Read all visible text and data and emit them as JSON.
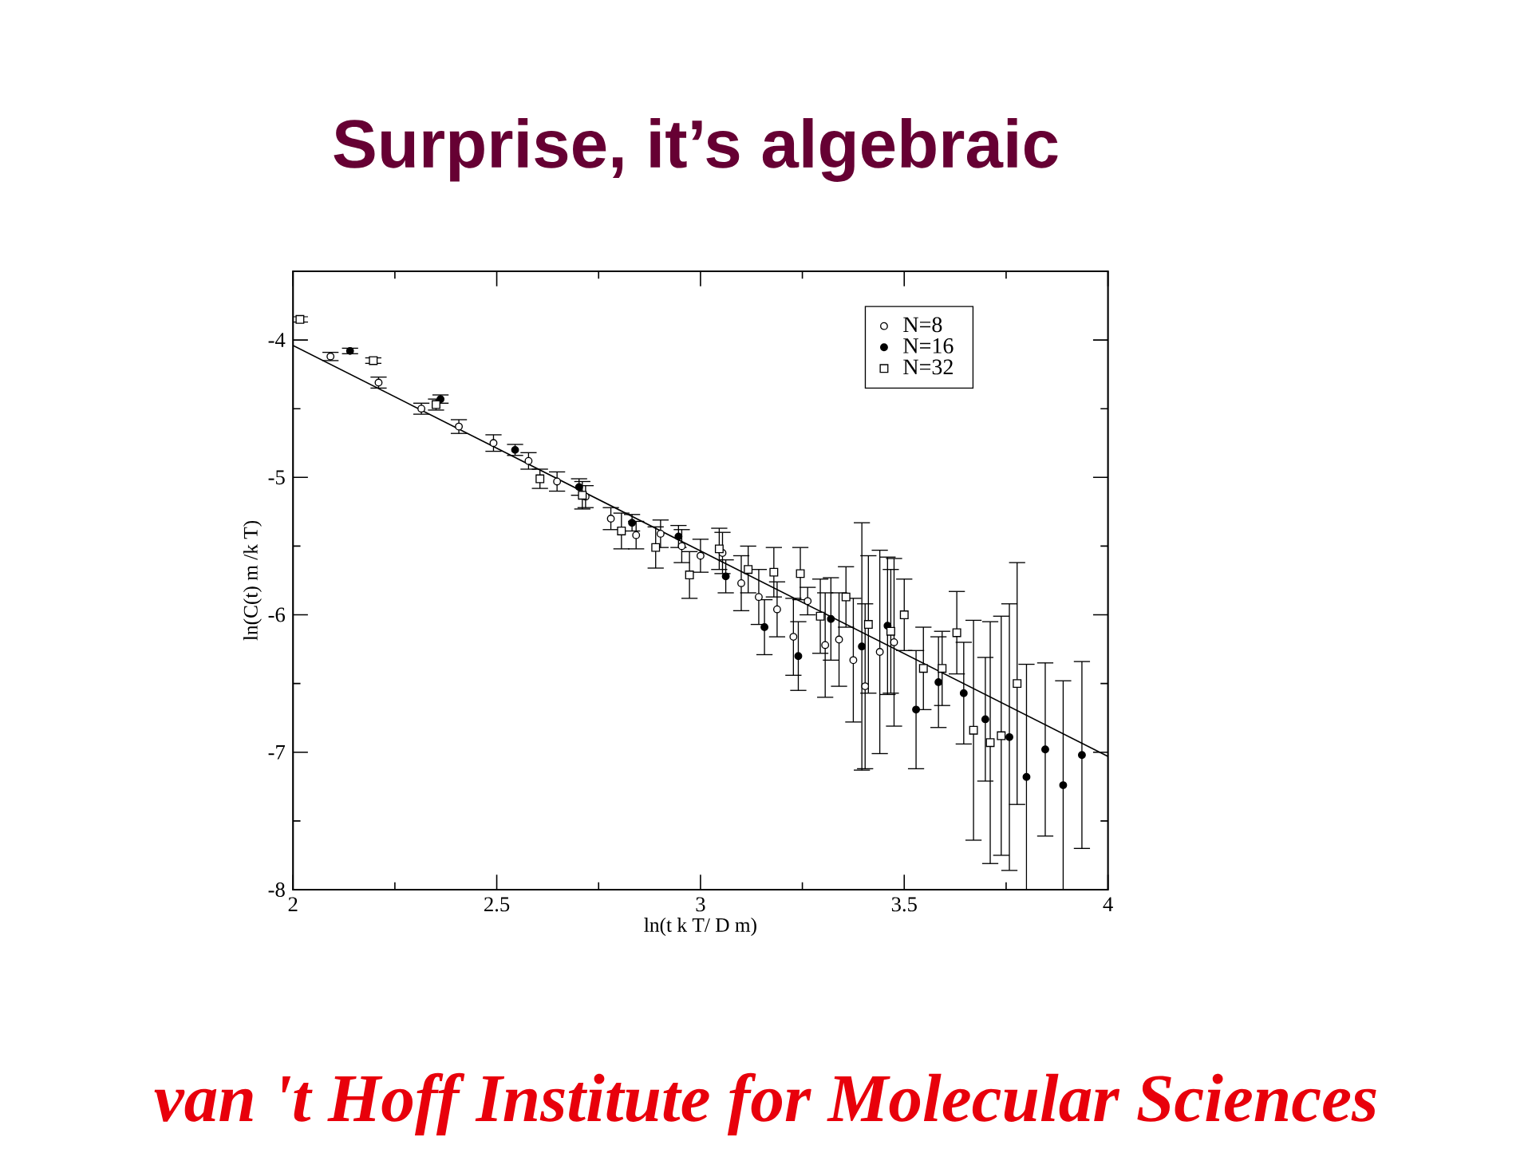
{
  "chart_data": {
    "type": "scatter",
    "title": "Surprise, it’s algebraic",
    "xlabel": "ln(t k T/ D m)",
    "ylabel": "ln(C(t) m /k T)",
    "xlim": [
      2,
      4
    ],
    "ylim": [
      -8,
      -3.5
    ],
    "xticks": [
      2,
      {
        "value": 2.25,
        "label": null
      },
      2.5,
      {
        "value": 2.75,
        "label": null
      },
      3,
      {
        "value": 3.25,
        "label": null
      },
      3.5,
      {
        "value": 3.75,
        "label": null
      },
      4
    ],
    "yticks": [
      -8,
      {
        "value": -7.5,
        "label": null
      },
      -7,
      {
        "value": -6.5,
        "label": null
      },
      -6,
      {
        "value": -5.5,
        "label": null
      },
      -5,
      {
        "value": -4.5,
        "label": null
      },
      -4
    ],
    "legend": "top right",
    "series": [
      {
        "name": "N=8",
        "color": "#ffffff",
        "marker": "circle",
        "x": [
          2.092,
          2.21,
          2.315,
          2.407,
          2.492,
          2.578,
          2.648,
          2.718,
          2.78,
          2.842,
          2.902,
          2.954,
          3.0,
          3.054,
          3.1,
          3.143,
          3.188,
          3.228,
          3.263,
          3.306,
          3.34,
          3.375,
          3.404,
          3.44,
          3.475
        ],
        "values": [
          -4.12,
          -4.31,
          -4.5,
          -4.63,
          -4.75,
          -4.88,
          -5.03,
          -5.14,
          -5.3,
          -5.42,
          -5.41,
          -5.5,
          -5.57,
          -5.55,
          -5.77,
          -5.87,
          -5.96,
          -6.16,
          -5.9,
          -6.22,
          -6.18,
          -6.33,
          -6.52,
          -6.27,
          -6.2
        ],
        "errors": [
          0.03,
          0.04,
          0.04,
          0.05,
          0.06,
          0.06,
          0.07,
          0.08,
          0.08,
          0.1,
          0.1,
          0.12,
          0.12,
          0.15,
          0.2,
          0.2,
          0.2,
          0.28,
          0.1,
          0.38,
          0.34,
          0.45,
          0.6,
          0.74,
          0.61
        ]
      },
      {
        "name": "N=16",
        "color": "#000000",
        "marker": "circle",
        "x": [
          2.14,
          2.362,
          2.545,
          2.702,
          2.832,
          2.946,
          3.062,
          3.157,
          3.24,
          3.32,
          3.396,
          3.459,
          3.529,
          3.584,
          3.646,
          3.699,
          3.758,
          3.8,
          3.846,
          3.89,
          3.936
        ],
        "values": [
          -4.08,
          -4.43,
          -4.8,
          -5.07,
          -5.33,
          -5.43,
          -5.72,
          -6.09,
          -6.3,
          -6.03,
          -6.23,
          -6.08,
          -6.69,
          -6.49,
          -6.57,
          -6.76,
          -6.89,
          -7.18,
          -6.98,
          -7.24,
          -7.02
        ],
        "errors": [
          0.02,
          0.03,
          0.04,
          0.06,
          0.06,
          0.08,
          0.12,
          0.2,
          0.25,
          0.3,
          0.9,
          0.5,
          0.43,
          0.33,
          0.37,
          0.45,
          0.97,
          0.82,
          0.63,
          0.76,
          0.68
        ]
      },
      {
        "name": "N=32",
        "color": "#ffffff",
        "marker": "square",
        "x": [
          2.017,
          2.197,
          2.351,
          2.606,
          2.71,
          2.806,
          2.89,
          2.973,
          3.046,
          3.117,
          3.18,
          3.245,
          3.294,
          3.357,
          3.412,
          3.467,
          3.5,
          3.547,
          3.593,
          3.629,
          3.67,
          3.711,
          3.738,
          3.777
        ],
        "values": [
          -3.85,
          -4.15,
          -4.47,
          -5.01,
          -5.13,
          -5.39,
          -5.51,
          -5.71,
          -5.52,
          -5.67,
          -5.69,
          -5.7,
          -6.01,
          -5.87,
          -6.07,
          -6.12,
          -6.0,
          -6.39,
          -6.39,
          -6.13,
          -6.84,
          -6.93,
          -6.88,
          -6.5
        ],
        "errors": [
          0.02,
          0.02,
          0.04,
          0.07,
          0.1,
          0.13,
          0.15,
          0.17,
          0.15,
          0.17,
          0.18,
          0.19,
          0.27,
          0.22,
          0.5,
          0.45,
          0.26,
          0.3,
          0.27,
          0.3,
          0.8,
          0.88,
          0.87,
          0.88
        ]
      },
      {
        "type": "line",
        "color": "#000000",
        "x": [
          2,
          4
        ],
        "values": [
          -4.04,
          -7.03
        ]
      }
    ],
    "annotations": [
      "van 't Hoff Institute for Molecular Sciences"
    ]
  }
}
